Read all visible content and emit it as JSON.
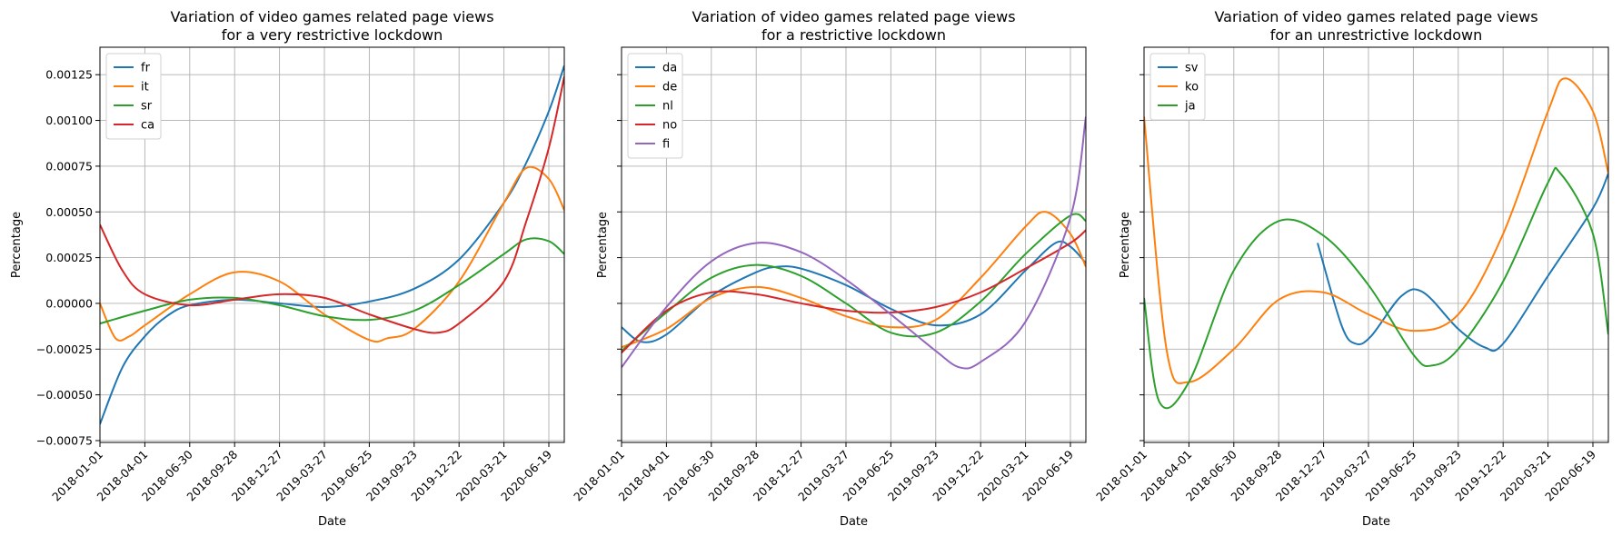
{
  "chart_data": [
    {
      "type": "line",
      "title": [
        "Variation of video games related page views",
        "for a very restrictive lockdown"
      ],
      "xlabel": "Date",
      "ylabel": "Percentage",
      "xlim": [
        "2018-01-01",
        "2020-07-20"
      ],
      "ylim": [
        -0.00076,
        0.0014
      ],
      "x_ticks": [
        "2018-01-01",
        "2018-04-01",
        "2018-06-30",
        "2018-09-28",
        "2018-12-27",
        "2019-03-27",
        "2019-06-25",
        "2019-09-23",
        "2019-12-22",
        "2020-03-21",
        "2020-06-19"
      ],
      "y_ticks": [
        -0.00075,
        -0.0005,
        -0.00025,
        0.0,
        0.00025,
        0.0005,
        0.00075,
        0.001,
        0.00125
      ],
      "y_tick_labels": [
        "−0.00075",
        "−0.00050",
        "−0.00025",
        "0.00000",
        "0.00025",
        "0.00050",
        "0.00075",
        "0.00100",
        "0.00125"
      ],
      "grid": true,
      "legend_position": "upper-left",
      "series": [
        {
          "name": "fr",
          "color": "#1f77b4",
          "x": [
            "2018-01-01",
            "2018-02-15",
            "2018-04-01",
            "2018-05-15",
            "2018-06-30",
            "2018-09-28",
            "2018-12-27",
            "2019-03-27",
            "2019-06-25",
            "2019-09-23",
            "2019-12-22",
            "2020-03-21",
            "2020-05-05",
            "2020-06-19",
            "2020-07-20"
          ],
          "y": [
            -0.00066,
            -0.00035,
            -0.00018,
            -7e-05,
            -1e-05,
            2e-05,
            0.0,
            -2e-05,
            1e-05,
            8e-05,
            0.00024,
            0.00055,
            0.00077,
            0.00105,
            0.0013
          ]
        },
        {
          "name": "it",
          "color": "#ff7f0e",
          "x": [
            "2018-01-01",
            "2018-02-01",
            "2018-03-01",
            "2018-04-01",
            "2018-06-30",
            "2018-09-28",
            "2018-12-27",
            "2019-03-27",
            "2019-06-25",
            "2019-08-01",
            "2019-09-23",
            "2019-12-22",
            "2020-03-21",
            "2020-05-05",
            "2020-06-19",
            "2020-07-20"
          ],
          "y": [
            0.0,
            -0.00019,
            -0.00018,
            -0.00012,
            5e-05,
            0.00017,
            0.00012,
            -6e-05,
            -0.0002,
            -0.00019,
            -0.00014,
            0.00012,
            0.00055,
            0.00074,
            0.00068,
            0.00051
          ]
        },
        {
          "name": "sr",
          "color": "#2ca02c",
          "x": [
            "2018-01-01",
            "2018-04-01",
            "2018-06-30",
            "2018-09-28",
            "2018-12-27",
            "2019-03-27",
            "2019-06-25",
            "2019-09-23",
            "2019-12-22",
            "2020-03-21",
            "2020-05-05",
            "2020-06-19",
            "2020-07-20"
          ],
          "y": [
            -0.00011,
            -4e-05,
            2e-05,
            3e-05,
            -1e-05,
            -7e-05,
            -9e-05,
            -4e-05,
            0.0001,
            0.00027,
            0.00035,
            0.00034,
            0.00027
          ]
        },
        {
          "name": "ca",
          "color": "#d62728",
          "x": [
            "2018-01-01",
            "2018-02-15",
            "2018-04-01",
            "2018-06-30",
            "2018-09-28",
            "2018-12-27",
            "2019-03-27",
            "2019-06-25",
            "2019-09-23",
            "2019-11-10",
            "2019-12-22",
            "2020-03-21",
            "2020-05-05",
            "2020-06-19",
            "2020-07-20"
          ],
          "y": [
            0.00043,
            0.00018,
            5e-05,
            -1e-05,
            2e-05,
            5e-05,
            3e-05,
            -6e-05,
            -0.00014,
            -0.00016,
            -0.00011,
            0.00012,
            0.00045,
            0.00085,
            0.00124
          ]
        }
      ]
    },
    {
      "type": "line",
      "title": [
        "Variation of video games related page views",
        "for a restrictive lockdown"
      ],
      "xlabel": "Date",
      "ylabel": "Percentage",
      "xlim": [
        "2018-01-01",
        "2020-07-20"
      ],
      "ylim": [
        -0.00076,
        0.0014
      ],
      "x_ticks": [
        "2018-01-01",
        "2018-04-01",
        "2018-06-30",
        "2018-09-28",
        "2018-12-27",
        "2019-03-27",
        "2019-06-25",
        "2019-09-23",
        "2019-12-22",
        "2020-03-21",
        "2020-06-19"
      ],
      "grid": true,
      "legend_position": "upper-left",
      "series": [
        {
          "name": "da",
          "color": "#1f77b4",
          "x": [
            "2018-01-01",
            "2018-02-10",
            "2018-04-01",
            "2018-06-30",
            "2018-09-28",
            "2018-11-10",
            "2018-12-27",
            "2019-03-27",
            "2019-06-25",
            "2019-09-23",
            "2019-12-22",
            "2020-03-21",
            "2020-05-20",
            "2020-06-19",
            "2020-07-20"
          ],
          "y": [
            -0.00013,
            -0.00021,
            -0.00017,
            4e-05,
            0.00017,
            0.0002,
            0.00019,
            0.0001,
            -3e-05,
            -0.00012,
            -6e-05,
            0.00018,
            0.00033,
            0.00031,
            0.00022
          ]
        },
        {
          "name": "de",
          "color": "#ff7f0e",
          "x": [
            "2018-01-01",
            "2018-04-01",
            "2018-06-30",
            "2018-09-28",
            "2018-12-27",
            "2019-03-27",
            "2019-06-25",
            "2019-09-23",
            "2019-12-22",
            "2020-03-21",
            "2020-05-01",
            "2020-06-19",
            "2020-07-20"
          ],
          "y": [
            -0.00024,
            -0.00014,
            3e-05,
            9e-05,
            3e-05,
            -7e-05,
            -0.00013,
            -9e-05,
            0.00014,
            0.00042,
            0.0005,
            0.00038,
            0.0002
          ]
        },
        {
          "name": "nl",
          "color": "#2ca02c",
          "x": [
            "2018-01-01",
            "2018-04-01",
            "2018-06-30",
            "2018-09-28",
            "2018-12-27",
            "2019-03-27",
            "2019-06-25",
            "2019-09-23",
            "2019-12-22",
            "2020-03-21",
            "2020-06-19",
            "2020-07-20"
          ],
          "y": [
            -0.00026,
            -5e-05,
            0.00014,
            0.00021,
            0.00015,
            0.0,
            -0.00016,
            -0.00016,
            1e-05,
            0.00027,
            0.00048,
            0.00045
          ]
        },
        {
          "name": "no",
          "color": "#d62728",
          "x": [
            "2018-01-01",
            "2018-04-01",
            "2018-06-30",
            "2018-09-28",
            "2018-12-27",
            "2019-03-27",
            "2019-06-25",
            "2019-09-23",
            "2019-12-22",
            "2020-03-21",
            "2020-06-19",
            "2020-07-20"
          ],
          "y": [
            -0.00027,
            -4e-05,
            6e-05,
            5e-05,
            0.0,
            -4e-05,
            -5e-05,
            -2e-05,
            6e-05,
            0.00019,
            0.00033,
            0.0004
          ]
        },
        {
          "name": "fi",
          "color": "#9467bd",
          "x": [
            "2018-01-01",
            "2018-04-01",
            "2018-06-30",
            "2018-09-28",
            "2018-12-27",
            "2019-03-27",
            "2019-06-25",
            "2019-09-23",
            "2019-11-10",
            "2019-12-22",
            "2020-03-21",
            "2020-06-19",
            "2020-07-20"
          ],
          "y": [
            -0.00035,
            -2e-05,
            0.00023,
            0.00033,
            0.00028,
            0.00013,
            -6e-05,
            -0.00026,
            -0.00035,
            -0.00032,
            -0.0001,
            0.00047,
            0.00102
          ]
        }
      ]
    },
    {
      "type": "line",
      "title": [
        "Variation of video games related page views",
        "for an unrestrictive lockdown"
      ],
      "xlabel": "Date",
      "ylabel": "Percentage",
      "xlim": [
        "2018-01-01",
        "2020-07-20"
      ],
      "ylim": [
        -0.00076,
        0.0014
      ],
      "x_ticks": [
        "2018-01-01",
        "2018-04-01",
        "2018-06-30",
        "2018-09-28",
        "2018-12-27",
        "2019-03-27",
        "2019-06-25",
        "2019-09-23",
        "2019-12-22",
        "2020-03-21",
        "2020-06-19"
      ],
      "grid": true,
      "legend_position": "upper-left",
      "series": [
        {
          "name": "sv",
          "color": "#1f77b4",
          "x": [
            "2018-12-15",
            "2019-02-01",
            "2019-03-01",
            "2019-04-01",
            "2019-06-01",
            "2019-07-15",
            "2019-09-23",
            "2019-11-15",
            "2019-12-22",
            "2020-03-21",
            "2020-06-19",
            "2020-07-20"
          ],
          "y": [
            0.00033,
            -0.00012,
            -0.00022,
            -0.00018,
            4e-05,
            6e-05,
            -0.00014,
            -0.00024,
            -0.00022,
            0.00015,
            0.00052,
            0.00071
          ]
        },
        {
          "name": "ko",
          "color": "#ff7f0e",
          "x": [
            "2018-01-01",
            "2018-02-15",
            "2018-04-01",
            "2018-06-30",
            "2018-09-28",
            "2018-12-27",
            "2019-03-27",
            "2019-06-25",
            "2019-09-23",
            "2019-12-22",
            "2020-03-21",
            "2020-04-25",
            "2020-06-19",
            "2020-07-20"
          ],
          "y": [
            0.00102,
            -0.00025,
            -0.00043,
            -0.00025,
            2e-05,
            6e-05,
            -6e-05,
            -0.00015,
            -6e-05,
            0.00038,
            0.00105,
            0.00123,
            0.00105,
            0.00071
          ]
        },
        {
          "name": "ja",
          "color": "#2ca02c",
          "x": [
            "2018-01-01",
            "2018-02-01",
            "2018-04-01",
            "2018-06-30",
            "2018-09-28",
            "2018-12-27",
            "2019-03-27",
            "2019-06-25",
            "2019-08-01",
            "2019-09-23",
            "2019-12-22",
            "2020-03-21",
            "2020-04-15",
            "2020-06-19",
            "2020-07-20"
          ],
          "y": [
            3e-05,
            -0.00054,
            -0.00043,
            0.00018,
            0.00045,
            0.00037,
            0.0001,
            -0.00028,
            -0.00034,
            -0.00025,
            0.00012,
            0.00066,
            0.00071,
            0.00038,
            -0.00017
          ]
        }
      ]
    }
  ]
}
